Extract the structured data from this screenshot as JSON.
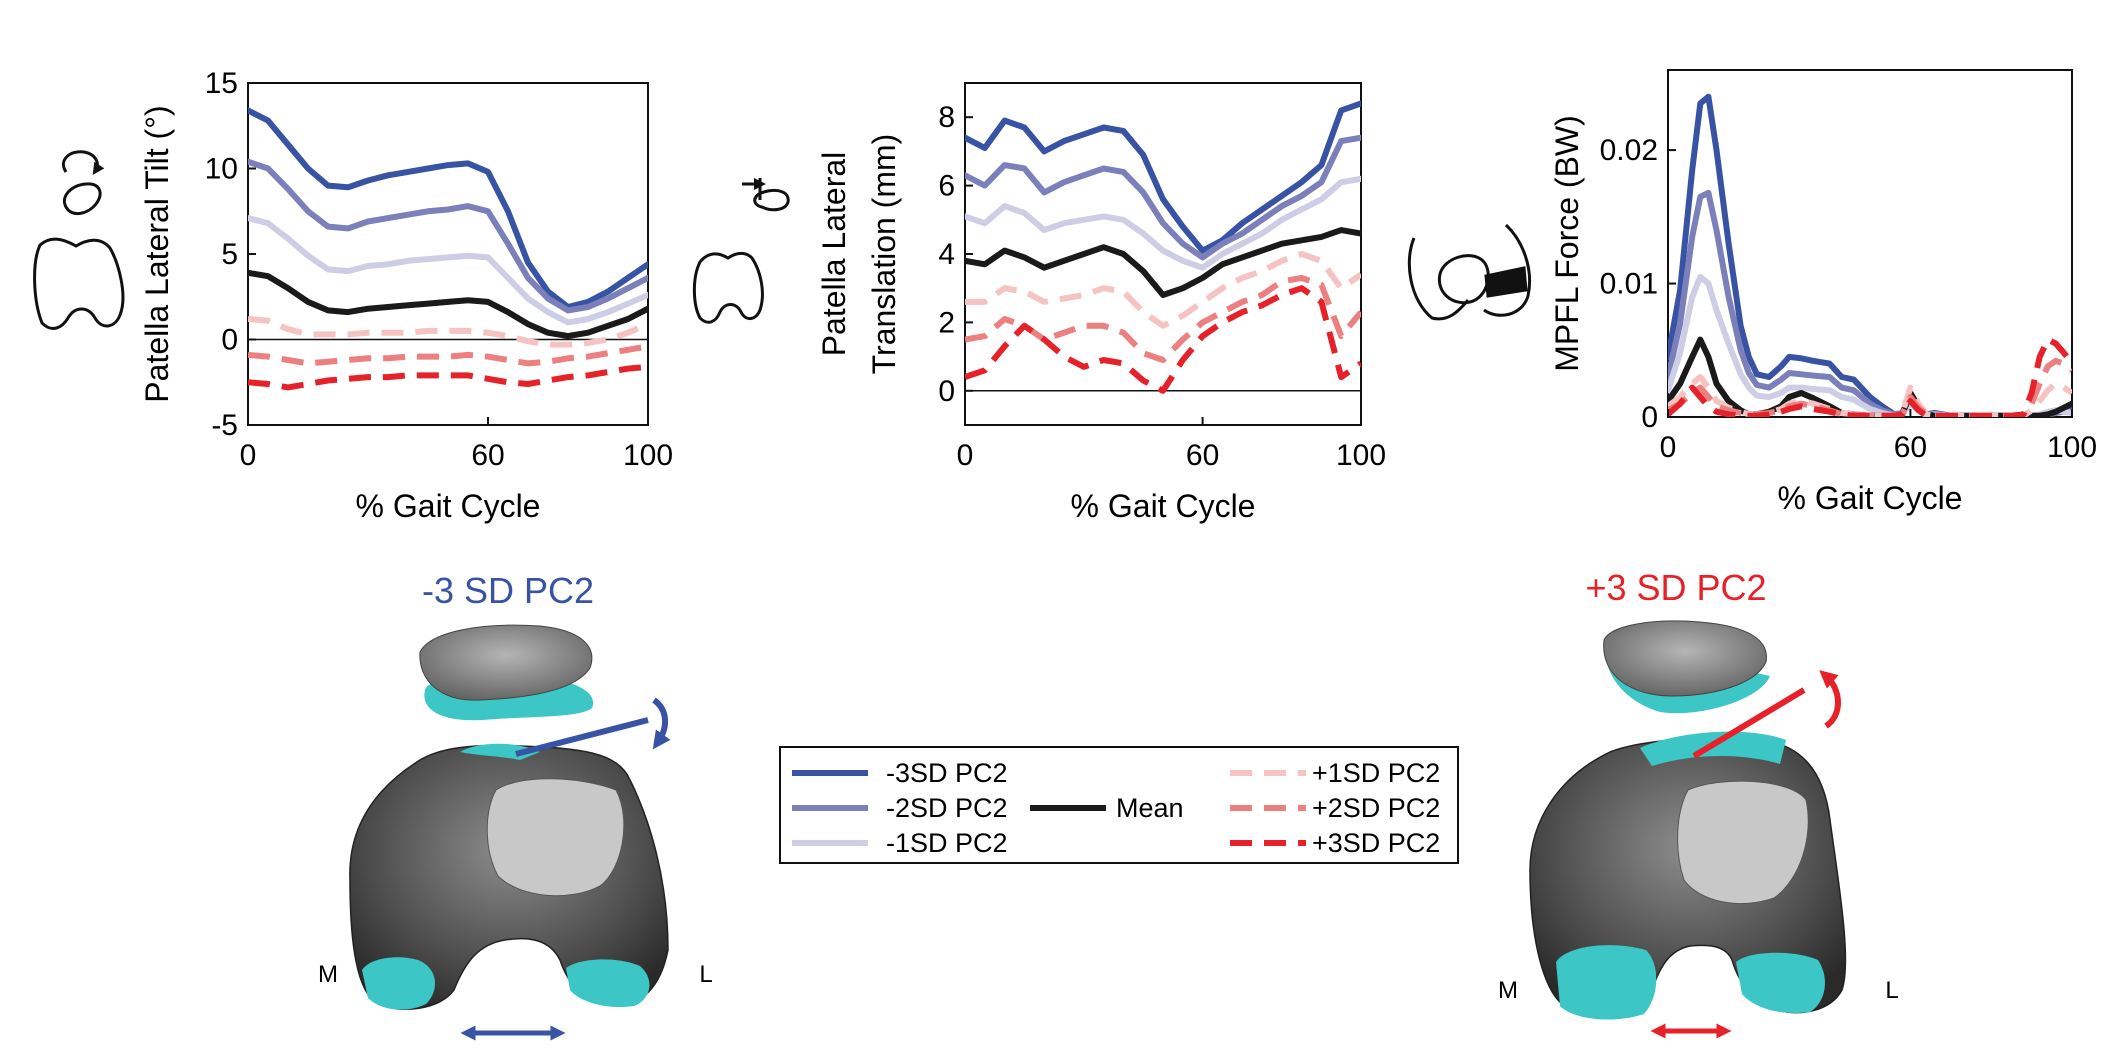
{
  "chart_data": [
    {
      "type": "line",
      "xlabel": "% Gait Cycle",
      "ylabel": "Patella Lateral Tilt (°)",
      "xlim": [
        0,
        100
      ],
      "ylim": [
        -5,
        15
      ],
      "xticks": [
        "0",
        "60",
        "100"
      ],
      "yticks": [
        "-5",
        "0",
        "5",
        "10",
        "15"
      ],
      "zero_line": true,
      "x": [
        0,
        5,
        10,
        15,
        20,
        25,
        30,
        35,
        40,
        45,
        50,
        55,
        60,
        65,
        70,
        75,
        80,
        85,
        90,
        95,
        100
      ],
      "series": [
        {
          "name": "-3SD PC2",
          "values": [
            13.4,
            12.8,
            11.4,
            10.0,
            9.0,
            8.9,
            9.3,
            9.6,
            9.8,
            10.0,
            10.2,
            10.3,
            9.8,
            7.5,
            4.5,
            2.8,
            1.9,
            2.2,
            2.8,
            3.6,
            4.4
          ]
        },
        {
          "name": "-2SD PC2",
          "values": [
            10.4,
            10.0,
            8.8,
            7.5,
            6.6,
            6.5,
            6.9,
            7.1,
            7.3,
            7.5,
            7.6,
            7.8,
            7.5,
            5.6,
            3.6,
            2.4,
            1.7,
            1.9,
            2.4,
            3.0,
            3.6
          ]
        },
        {
          "name": "-1SD PC2",
          "values": [
            7.1,
            6.8,
            5.9,
            4.9,
            4.1,
            4.0,
            4.3,
            4.4,
            4.6,
            4.7,
            4.8,
            4.9,
            4.8,
            3.6,
            2.4,
            1.6,
            1.0,
            1.2,
            1.6,
            2.1,
            2.6
          ]
        },
        {
          "name": "Mean",
          "values": [
            3.9,
            3.7,
            3.0,
            2.2,
            1.7,
            1.6,
            1.8,
            1.9,
            2.0,
            2.1,
            2.2,
            2.3,
            2.2,
            1.6,
            0.9,
            0.4,
            0.2,
            0.4,
            0.8,
            1.2,
            1.8
          ]
        },
        {
          "name": "+1SD PC2",
          "values": [
            1.2,
            1.1,
            0.6,
            0.3,
            0.3,
            0.3,
            0.4,
            0.4,
            0.4,
            0.5,
            0.5,
            0.5,
            0.4,
            0.2,
            -0.1,
            -0.3,
            -0.3,
            -0.2,
            0.0,
            0.4,
            0.9
          ]
        },
        {
          "name": "+2SD PC2",
          "values": [
            -0.9,
            -1.0,
            -1.2,
            -1.4,
            -1.3,
            -1.2,
            -1.1,
            -1.1,
            -1.0,
            -1.0,
            -1.0,
            -0.9,
            -1.0,
            -1.2,
            -1.4,
            -1.3,
            -1.1,
            -1.0,
            -0.8,
            -0.6,
            -0.4
          ]
        },
        {
          "name": "+3SD PC2",
          "values": [
            -2.5,
            -2.6,
            -2.8,
            -2.6,
            -2.4,
            -2.3,
            -2.2,
            -2.2,
            -2.1,
            -2.1,
            -2.1,
            -2.1,
            -2.3,
            -2.5,
            -2.6,
            -2.4,
            -2.2,
            -2.1,
            -1.9,
            -1.7,
            -1.6
          ]
        }
      ]
    },
    {
      "type": "line",
      "xlabel": "% Gait Cycle",
      "ylabel": "Patella Lateral Translation (mm)",
      "xlim": [
        0,
        100
      ],
      "ylim": [
        -1,
        9
      ],
      "xticks": [
        "0",
        "60",
        "100"
      ],
      "yticks": [
        "0",
        "2",
        "4",
        "6",
        "8"
      ],
      "zero_line": true,
      "x": [
        0,
        5,
        10,
        15,
        20,
        25,
        30,
        35,
        40,
        45,
        50,
        55,
        60,
        65,
        70,
        75,
        80,
        85,
        90,
        95,
        100
      ],
      "series": [
        {
          "name": "-3SD PC2",
          "values": [
            7.4,
            7.1,
            7.9,
            7.7,
            7.0,
            7.3,
            7.5,
            7.7,
            7.6,
            6.9,
            5.6,
            4.8,
            4.1,
            4.4,
            4.9,
            5.3,
            5.7,
            6.1,
            6.6,
            8.2,
            8.4
          ]
        },
        {
          "name": "-2SD PC2",
          "values": [
            6.3,
            6.0,
            6.6,
            6.5,
            5.8,
            6.1,
            6.3,
            6.5,
            6.4,
            5.8,
            4.9,
            4.3,
            3.9,
            4.3,
            4.6,
            5.0,
            5.4,
            5.7,
            6.1,
            7.3,
            7.4
          ]
        },
        {
          "name": "-1SD PC2",
          "values": [
            5.1,
            4.9,
            5.4,
            5.2,
            4.7,
            4.9,
            5.0,
            5.1,
            5.0,
            4.6,
            4.1,
            3.8,
            3.6,
            4.0,
            4.3,
            4.6,
            5.0,
            5.3,
            5.6,
            6.1,
            6.2
          ]
        },
        {
          "name": "Mean",
          "values": [
            3.8,
            3.7,
            4.1,
            3.9,
            3.6,
            3.8,
            4.0,
            4.2,
            4.0,
            3.5,
            2.8,
            3.0,
            3.3,
            3.7,
            3.9,
            4.1,
            4.3,
            4.4,
            4.5,
            4.7,
            4.6
          ]
        },
        {
          "name": "+1SD PC2",
          "values": [
            2.6,
            2.6,
            3.0,
            2.9,
            2.6,
            2.7,
            2.8,
            3.0,
            2.9,
            2.3,
            1.9,
            2.2,
            2.6,
            3.0,
            3.3,
            3.5,
            3.8,
            4.0,
            3.8,
            3.0,
            3.4
          ]
        },
        {
          "name": "+2SD PC2",
          "values": [
            1.5,
            1.6,
            2.1,
            1.9,
            1.5,
            1.7,
            1.9,
            1.9,
            1.7,
            1.1,
            0.9,
            1.5,
            2.0,
            2.3,
            2.6,
            2.8,
            3.2,
            3.3,
            3.1,
            1.6,
            2.3
          ]
        },
        {
          "name": "+3SD PC2",
          "values": [
            0.4,
            0.6,
            1.3,
            1.9,
            1.5,
            1.0,
            0.7,
            0.9,
            0.8,
            0.3,
            0.0,
            0.9,
            1.6,
            2.0,
            2.3,
            2.5,
            2.8,
            3.0,
            2.6,
            0.4,
            0.8
          ]
        }
      ]
    },
    {
      "type": "line",
      "xlabel": "% Gait Cycle",
      "ylabel": "MPFL Force (BW)",
      "xlim": [
        0,
        100
      ],
      "ylim": [
        0,
        0.026
      ],
      "xticks": [
        "0",
        "60",
        "100"
      ],
      "yticks": [
        "0",
        "0.01",
        "0.02"
      ],
      "zero_line": false,
      "x": [
        0,
        3,
        6,
        8,
        10,
        12,
        15,
        18,
        20,
        22,
        25,
        28,
        30,
        33,
        36,
        40,
        43,
        46,
        50,
        53,
        56,
        58,
        60,
        62,
        64,
        66,
        70,
        75,
        80,
        85,
        88,
        90,
        92,
        94,
        96,
        98,
        100
      ],
      "series": [
        {
          "name": "-3SD PC2",
          "values": [
            0.0045,
            0.0095,
            0.0185,
            0.0235,
            0.024,
            0.02,
            0.013,
            0.0068,
            0.0045,
            0.0032,
            0.003,
            0.0038,
            0.0045,
            0.0044,
            0.0042,
            0.004,
            0.003,
            0.0028,
            0.0015,
            0.0008,
            0.0002,
            0.0003,
            0.0015,
            0.0008,
            0.0002,
            0.0003,
            0.0001,
            0.0001,
            0.0001,
            0.0001,
            0.0001,
            0.0001,
            0.0001,
            0.0002,
            0.0004,
            0.0005,
            0.0006
          ]
        },
        {
          "name": "-2SD PC2",
          "values": [
            0.003,
            0.007,
            0.0135,
            0.0165,
            0.0168,
            0.014,
            0.009,
            0.005,
            0.0033,
            0.0024,
            0.0022,
            0.0028,
            0.0033,
            0.0032,
            0.0031,
            0.003,
            0.0022,
            0.002,
            0.001,
            0.0005,
            0.0002,
            0.0003,
            0.0013,
            0.0007,
            0.0002,
            0.0002,
            0.0001,
            0.0001,
            0.0001,
            0.0001,
            0.0001,
            0.0001,
            0.0001,
            0.0002,
            0.0003,
            0.0004,
            0.0004
          ]
        },
        {
          "name": "-1SD PC2",
          "values": [
            0.002,
            0.0048,
            0.009,
            0.0105,
            0.01,
            0.008,
            0.0055,
            0.0032,
            0.0022,
            0.0016,
            0.0015,
            0.0018,
            0.0022,
            0.0022,
            0.0021,
            0.002,
            0.0015,
            0.0013,
            0.0006,
            0.0003,
            0.0001,
            0.0002,
            0.001,
            0.0005,
            0.0001,
            0.0002,
            0.0001,
            0.0001,
            0.0001,
            0.0001,
            0.0001,
            0.0001,
            0.0002,
            0.0004,
            0.0005,
            0.0004,
            0.0003
          ]
        },
        {
          "name": "Mean",
          "values": [
            0.0012,
            0.0025,
            0.0045,
            0.0058,
            0.0045,
            0.0025,
            0.0012,
            0.0005,
            0.0002,
            0.0002,
            0.0004,
            0.0008,
            0.0015,
            0.0018,
            0.0014,
            0.0008,
            0.0003,
            0.0002,
            0.0001,
            0.0001,
            0.0001,
            0.0002,
            0.0018,
            0.0008,
            0.0002,
            0.0001,
            0.0001,
            0.0001,
            0.0001,
            0.0001,
            0.0001,
            0.0001,
            0.0001,
            0.0002,
            0.0004,
            0.0007,
            0.001
          ]
        },
        {
          "name": "+1SD PC2",
          "values": [
            0.0008,
            0.0015,
            0.0025,
            0.003,
            0.0022,
            0.0012,
            0.0007,
            0.0004,
            0.0002,
            0.0002,
            0.0003,
            0.0006,
            0.001,
            0.0012,
            0.001,
            0.0006,
            0.0003,
            0.0002,
            0.0001,
            0.0001,
            0.0001,
            0.0003,
            0.0022,
            0.001,
            0.0002,
            0.0001,
            0.0001,
            0.0001,
            0.0001,
            0.0001,
            0.0001,
            0.0005,
            0.0012,
            0.002,
            0.0025,
            0.0022,
            0.0018
          ]
        },
        {
          "name": "+2SD PC2",
          "values": [
            0.0005,
            0.001,
            0.0018,
            0.0022,
            0.0015,
            0.0008,
            0.0005,
            0.0003,
            0.0002,
            0.0002,
            0.0003,
            0.0005,
            0.0008,
            0.001,
            0.0008,
            0.0005,
            0.0002,
            0.0002,
            0.0001,
            0.0001,
            0.0001,
            0.0002,
            0.0015,
            0.0007,
            0.0002,
            0.0001,
            0.0001,
            0.0001,
            0.0001,
            0.0001,
            0.0002,
            0.001,
            0.0025,
            0.0038,
            0.0042,
            0.004,
            0.0035
          ]
        },
        {
          "name": "+3SD PC2",
          "values": [
            0.0002,
            0.001,
            0.0022,
            0.0015,
            0.0008,
            0.0004,
            0.0002,
            0.0001,
            0.0001,
            0.0001,
            0.0002,
            0.0004,
            0.0006,
            0.0008,
            0.0006,
            0.0004,
            0.0002,
            0.0001,
            0.0001,
            0.0001,
            0.0001,
            0.0002,
            0.0012,
            0.0005,
            0.0001,
            0.0001,
            0.0001,
            0.0001,
            0.0001,
            0.0001,
            0.0002,
            0.0018,
            0.0045,
            0.0058,
            0.0055,
            0.0048,
            0.004
          ]
        }
      ]
    }
  ],
  "series_styles": [
    {
      "name": "-3SD PC2",
      "color": "#3953a4",
      "dashed": false,
      "width": 6
    },
    {
      "name": "-2SD PC2",
      "color": "#7b7fba",
      "dashed": false,
      "width": 6
    },
    {
      "name": "-1SD PC2",
      "color": "#cdcde6",
      "dashed": false,
      "width": 6
    },
    {
      "name": "Mean",
      "color": "#1a1a1a",
      "dashed": false,
      "width": 6
    },
    {
      "name": "+1SD PC2",
      "color": "#f6c3c3",
      "dashed": true,
      "width": 6
    },
    {
      "name": "+2SD PC2",
      "color": "#ec7f80",
      "dashed": true,
      "width": 6
    },
    {
      "name": "+3SD PC2",
      "color": "#e62129",
      "dashed": true,
      "width": 6
    }
  ],
  "legend": {
    "col1": [
      "-3SD PC2",
      "-2SD PC2",
      "-1SD PC2"
    ],
    "col2": [
      "Mean"
    ],
    "col3": [
      "+1SD PC2",
      "+2SD PC2",
      "+3SD PC2"
    ]
  },
  "models": {
    "left": {
      "title": "-3 SD PC2",
      "color": "#3953a4",
      "label_m": "M",
      "label_l": "L"
    },
    "right": {
      "title": "+3 SD PC2",
      "color": "#e62129",
      "label_m": "M",
      "label_l": "L"
    }
  },
  "colors": {
    "cartilage": "#3cc6c6",
    "bone": "#4a4a4a",
    "bone_light": "#8a8a8a",
    "patella": "#7a7a7a"
  },
  "icons": [
    "tilt-icon",
    "translation-icon",
    "mpfl-icon"
  ]
}
